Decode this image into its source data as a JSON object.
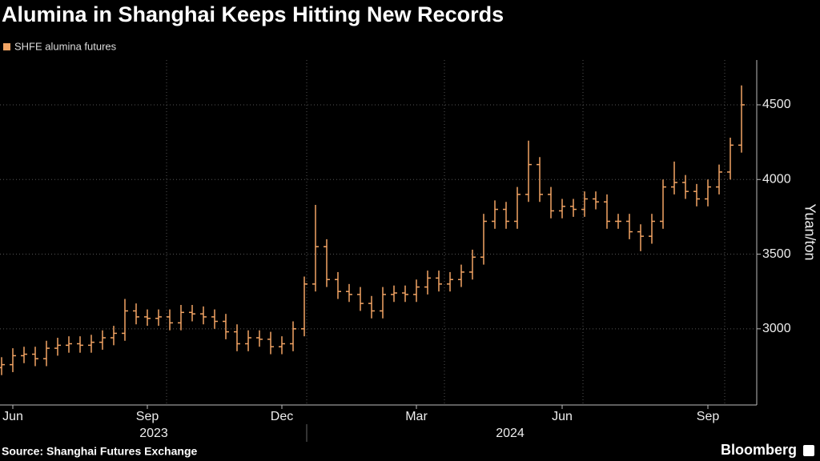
{
  "chart_data": {
    "type": "ohlc",
    "title": "Alumina in Shanghai Keeps Hitting New Records",
    "y_label": "Yuan/ton",
    "categories": [
      null,
      "Jun",
      null,
      null,
      null,
      null,
      null,
      null,
      null,
      null,
      null,
      null,
      null,
      "Sep",
      null,
      null,
      null,
      null,
      null,
      null,
      null,
      null,
      null,
      null,
      null,
      "Dec",
      null,
      null,
      null,
      null,
      null,
      null,
      null,
      null,
      null,
      null,
      null,
      "Mar",
      null,
      null,
      null,
      null,
      null,
      null,
      null,
      null,
      null,
      null,
      null,
      null,
      "Jun",
      null,
      null,
      null,
      null,
      null,
      null,
      null,
      null,
      null,
      null,
      null,
      null,
      "Sep",
      null,
      null,
      null
    ],
    "x_groups": [
      "2023",
      "2024"
    ],
    "series": [
      {
        "name": "SHFE alumina futures",
        "color": "#f2a464",
        "open": [
          2740,
          2760,
          2820,
          2830,
          2800,
          2870,
          2890,
          2900,
          2890,
          2910,
          2940,
          2970,
          3120,
          3080,
          3070,
          3080,
          3040,
          3110,
          3100,
          3080,
          3050,
          2980,
          2900,
          2940,
          2930,
          2880,
          2900,
          3000,
          3300,
          3550,
          3330,
          3250,
          3230,
          3170,
          3120,
          3230,
          3240,
          3230,
          3280,
          3340,
          3300,
          3330,
          3380,
          3480,
          3720,
          3800,
          3720,
          3900,
          4100,
          3900,
          3790,
          3820,
          3800,
          3870,
          3850,
          3720,
          3720,
          3650,
          3620,
          3720,
          3950,
          3980,
          3920,
          3870,
          3950,
          4050,
          4230
        ],
        "high": [
          2810,
          2870,
          2880,
          2880,
          2920,
          2940,
          2950,
          2950,
          2960,
          2990,
          3020,
          3200,
          3170,
          3130,
          3130,
          3130,
          3160,
          3160,
          3150,
          3130,
          3100,
          3030,
          2990,
          2990,
          2980,
          2950,
          3050,
          3350,
          3830,
          3600,
          3380,
          3300,
          3280,
          3220,
          3280,
          3290,
          3290,
          3330,
          3390,
          3390,
          3380,
          3430,
          3530,
          3770,
          3860,
          3850,
          3950,
          4260,
          4150,
          3950,
          3870,
          3870,
          3920,
          3920,
          3900,
          3770,
          3770,
          3700,
          3770,
          4000,
          4120,
          4030,
          3970,
          4000,
          4100,
          4280,
          4630
        ],
        "low": [
          2690,
          2710,
          2770,
          2750,
          2750,
          2820,
          2840,
          2840,
          2840,
          2860,
          2890,
          2920,
          3030,
          3020,
          3020,
          2990,
          2990,
          3050,
          3030,
          3000,
          2930,
          2850,
          2850,
          2880,
          2830,
          2830,
          2850,
          2950,
          3250,
          3280,
          3200,
          3180,
          3120,
          3070,
          3070,
          3180,
          3180,
          3180,
          3230,
          3250,
          3250,
          3280,
          3330,
          3430,
          3670,
          3670,
          3670,
          3850,
          3850,
          3740,
          3740,
          3750,
          3750,
          3800,
          3670,
          3670,
          3600,
          3520,
          3570,
          3670,
          3900,
          3870,
          3820,
          3820,
          3900,
          4000,
          4180
        ],
        "close": [
          2760,
          2820,
          2830,
          2800,
          2870,
          2890,
          2900,
          2890,
          2910,
          2940,
          2970,
          3120,
          3080,
          3070,
          3080,
          3040,
          3110,
          3100,
          3080,
          3050,
          2980,
          2900,
          2940,
          2930,
          2880,
          2900,
          3000,
          3300,
          3550,
          3330,
          3250,
          3230,
          3170,
          3120,
          3230,
          3240,
          3230,
          3280,
          3340,
          3300,
          3330,
          3380,
          3480,
          3720,
          3800,
          3720,
          3900,
          4100,
          3900,
          3790,
          3820,
          3800,
          3870,
          3850,
          3720,
          3720,
          3650,
          3620,
          3720,
          3950,
          3980,
          3920,
          3870,
          3950,
          4050,
          4230,
          4500
        ]
      }
    ],
    "ylim": [
      2490,
      4800
    ],
    "yticks": [
      3000,
      3500,
      4000,
      4500
    ],
    "grid": true,
    "source": "Source: Shanghai Futures Exchange",
    "brand": "Bloomberg"
  }
}
